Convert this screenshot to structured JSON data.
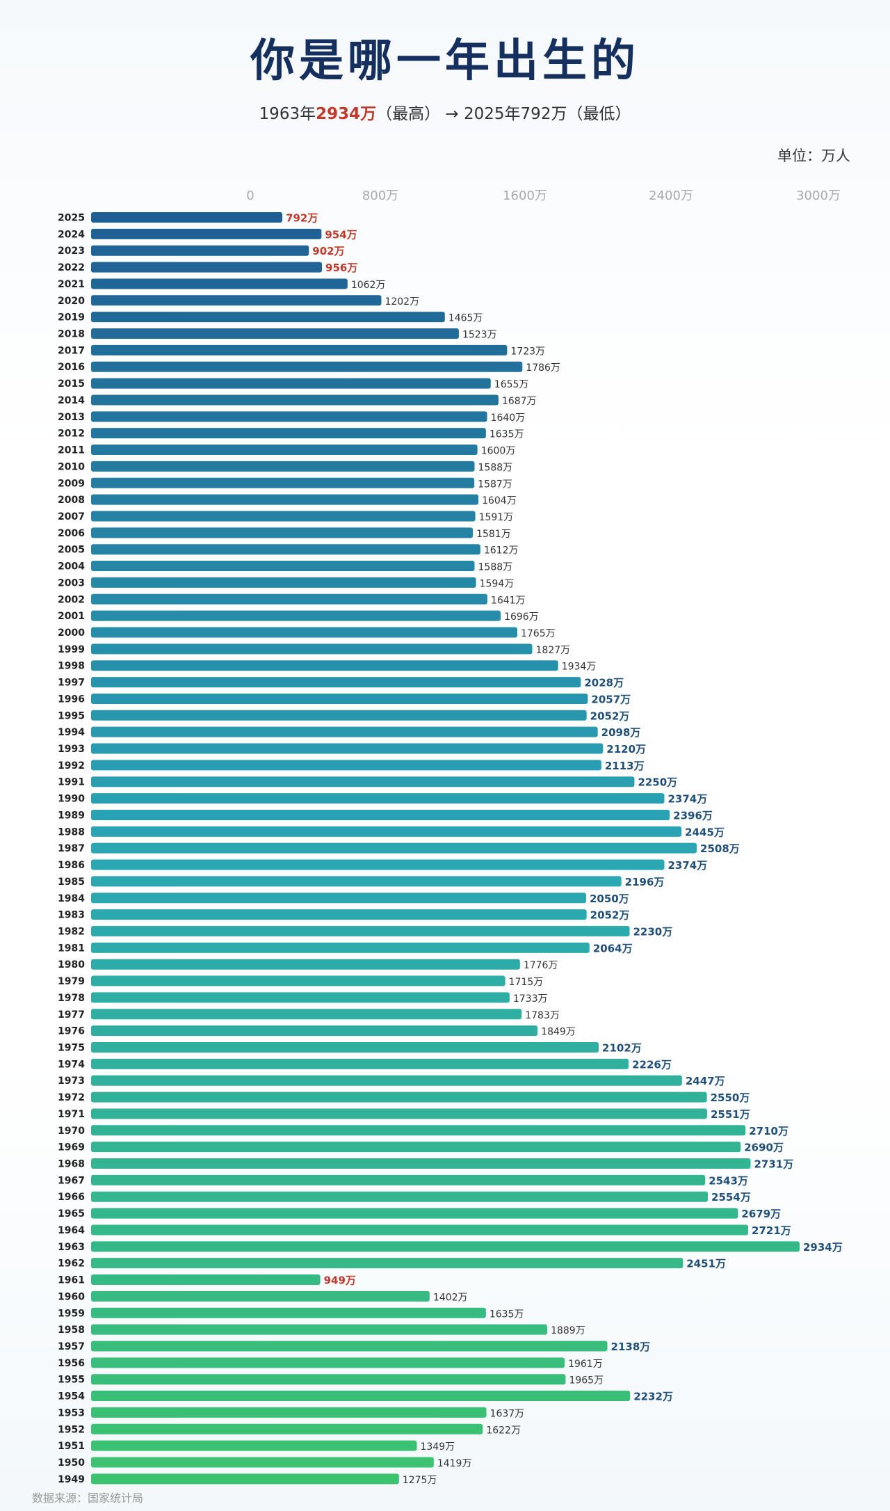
{
  "title": "你是哪一年出生的",
  "subtitle": {
    "part1": "1963年",
    "highlight": "2934万",
    "part2": "（最高）",
    "arrow": "→",
    "part3": "2025年792万（最低）"
  },
  "unit_label": "单位：万人",
  "source": "数据来源：国家统计局",
  "colors": {
    "bar_top": "#1f5f93",
    "bar_mid": "#2aa6b5",
    "bar_bottom": "#3cc36e",
    "low_value_label": "#c0392b",
    "high_value_label": "#1f4e79",
    "normal_value_label": "#333333"
  },
  "chart_data": {
    "type": "bar",
    "orientation": "horizontal",
    "xlim": [
      0,
      3000
    ],
    "x_ticks": [
      "0",
      "800万",
      "1600万",
      "2400万",
      "3000万"
    ],
    "x_tick_values": [
      0,
      800,
      1600,
      2400,
      3000
    ],
    "value_suffix": "万",
    "categories": [
      "2025",
      "2024",
      "2023",
      "2022",
      "2021",
      "2020",
      "2019",
      "2018",
      "2017",
      "2016",
      "2015",
      "2014",
      "2013",
      "2012",
      "2011",
      "2010",
      "2009",
      "2008",
      "2007",
      "2006",
      "2005",
      "2004",
      "2003",
      "2002",
      "2001",
      "2000",
      "1999",
      "1998",
      "1997",
      "1996",
      "1995",
      "1994",
      "1993",
      "1992",
      "1991",
      "1990",
      "1989",
      "1988",
      "1987",
      "1986",
      "1985",
      "1984",
      "1983",
      "1982",
      "1981",
      "1980",
      "1979",
      "1978",
      "1977",
      "1976",
      "1975",
      "1974",
      "1973",
      "1972",
      "1971",
      "1970",
      "1969",
      "1968",
      "1967",
      "1966",
      "1965",
      "1964",
      "1963",
      "1962",
      "1961",
      "1960",
      "1959",
      "1958",
      "1957",
      "1956",
      "1955",
      "1954",
      "1953",
      "1952",
      "1951",
      "1950",
      "1949"
    ],
    "values": [
      792,
      954,
      902,
      956,
      1062,
      1202,
      1465,
      1523,
      1723,
      1786,
      1655,
      1687,
      1640,
      1635,
      1600,
      1588,
      1587,
      1604,
      1591,
      1581,
      1612,
      1588,
      1594,
      1641,
      1696,
      1765,
      1827,
      1934,
      2028,
      2057,
      2052,
      2098,
      2120,
      2113,
      2250,
      2374,
      2396,
      2445,
      2508,
      2374,
      2196,
      2050,
      2052,
      2230,
      2064,
      1776,
      1715,
      1733,
      1783,
      1849,
      2102,
      2226,
      2447,
      2550,
      2551,
      2710,
      2690,
      2731,
      2543,
      2554,
      2679,
      2721,
      2934,
      2451,
      949,
      1402,
      1635,
      1889,
      2138,
      1961,
      1965,
      2232,
      1637,
      1622,
      1349,
      1419,
      1275
    ],
    "grid": false,
    "legend": "none"
  }
}
